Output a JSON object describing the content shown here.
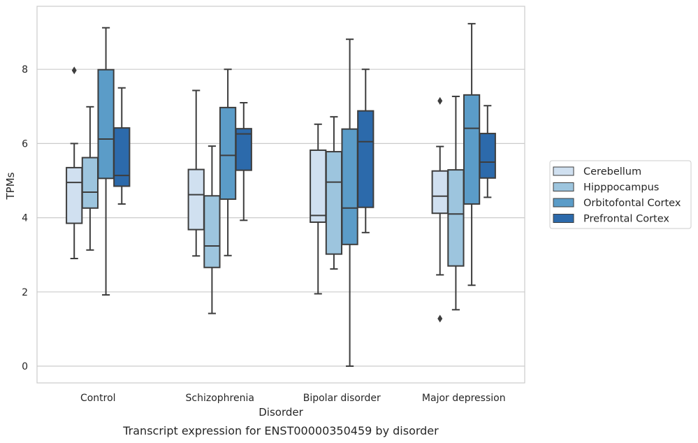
{
  "chart_data": {
    "type": "box",
    "caption": "Transcript expression for ENST00000350459 by disorder",
    "xlabel": "Disorder",
    "ylabel": "TPMs",
    "ylim": [
      -0.45,
      9.7
    ],
    "yticks": [
      0,
      2,
      4,
      6,
      8
    ],
    "grid": "horizontal",
    "legend_position": "right",
    "categories": [
      "Control",
      "Schizophrenia",
      "Bipolar disorder",
      "Major depression"
    ],
    "series": [
      {
        "name": "Cerebellum",
        "color": "#d0e0f0",
        "boxes": [
          {
            "whisker_low": 2.9,
            "q1": 3.85,
            "median": 4.95,
            "q3": 5.35,
            "whisker_high": 6.0,
            "outliers": [
              7.97
            ]
          },
          {
            "whisker_low": 2.97,
            "q1": 3.68,
            "median": 4.62,
            "q3": 5.3,
            "whisker_high": 7.43,
            "outliers": []
          },
          {
            "whisker_low": 1.95,
            "q1": 3.88,
            "median": 4.06,
            "q3": 5.82,
            "whisker_high": 6.52,
            "outliers": []
          },
          {
            "whisker_low": 2.46,
            "q1": 4.12,
            "median": 4.58,
            "q3": 5.26,
            "whisker_high": 5.92,
            "outliers": [
              7.15,
              1.28
            ]
          }
        ]
      },
      {
        "name": "Hipppocampus",
        "color": "#9dc5de",
        "boxes": [
          {
            "whisker_low": 3.13,
            "q1": 4.26,
            "median": 4.69,
            "q3": 5.62,
            "whisker_high": 6.99,
            "outliers": []
          },
          {
            "whisker_low": 1.42,
            "q1": 2.66,
            "median": 3.24,
            "q3": 4.59,
            "whisker_high": 5.93,
            "outliers": []
          },
          {
            "whisker_low": 2.62,
            "q1": 3.02,
            "median": 4.96,
            "q3": 5.78,
            "whisker_high": 6.72,
            "outliers": []
          },
          {
            "whisker_low": 1.52,
            "q1": 2.7,
            "median": 4.1,
            "q3": 5.29,
            "whisker_high": 7.27,
            "outliers": []
          }
        ]
      },
      {
        "name": "Orbitofontal Cortex",
        "color": "#5b9cc8",
        "boxes": [
          {
            "whisker_low": 1.92,
            "q1": 5.06,
            "median": 6.12,
            "q3": 7.99,
            "whisker_high": 9.12,
            "outliers": []
          },
          {
            "whisker_low": 2.98,
            "q1": 4.5,
            "median": 5.68,
            "q3": 6.97,
            "whisker_high": 8.0,
            "outliers": []
          },
          {
            "whisker_low": 0.0,
            "q1": 3.28,
            "median": 4.26,
            "q3": 6.39,
            "whisker_high": 8.81,
            "outliers": []
          },
          {
            "whisker_low": 2.18,
            "q1": 4.37,
            "median": 6.41,
            "q3": 7.31,
            "whisker_high": 9.23,
            "outliers": []
          }
        ]
      },
      {
        "name": "Prefrontal Cortex",
        "color": "#2c6aab",
        "boxes": [
          {
            "whisker_low": 4.37,
            "q1": 4.85,
            "median": 5.14,
            "q3": 6.42,
            "whisker_high": 7.5,
            "outliers": []
          },
          {
            "whisker_low": 3.93,
            "q1": 5.28,
            "median": 6.26,
            "q3": 6.4,
            "whisker_high": 7.1,
            "outliers": []
          },
          {
            "whisker_low": 3.6,
            "q1": 4.28,
            "median": 6.05,
            "q3": 6.88,
            "whisker_high": 8.0,
            "outliers": []
          },
          {
            "whisker_low": 4.55,
            "q1": 5.07,
            "median": 5.5,
            "q3": 6.27,
            "whisker_high": 7.02,
            "outliers": []
          }
        ]
      }
    ]
  }
}
